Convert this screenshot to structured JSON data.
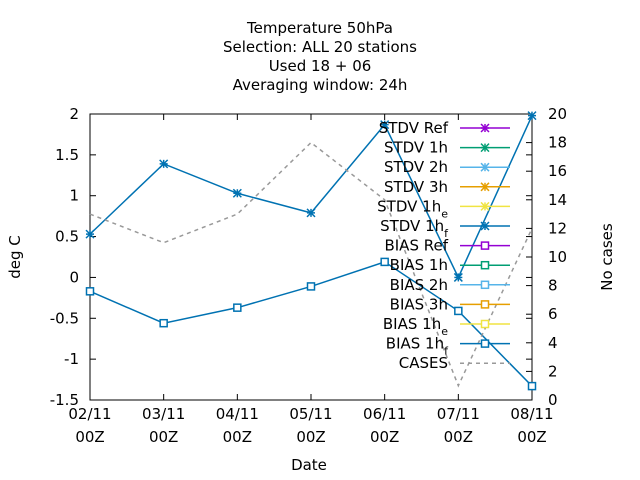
{
  "chart_data": {
    "type": "line",
    "title_lines": [
      "Temperature 50hPa",
      "Selection: ALL      20 stations",
      "Used  18 + 06",
      "Averaging window: 24h"
    ],
    "xlabel": "Date",
    "ylabel": "deg C",
    "y2label": "No cases",
    "x_ticks": [
      {
        "top": "02/11",
        "bottom": "00Z"
      },
      {
        "top": "03/11",
        "bottom": "00Z"
      },
      {
        "top": "04/11",
        "bottom": "00Z"
      },
      {
        "top": "05/11",
        "bottom": "00Z"
      },
      {
        "top": "06/11",
        "bottom": "00Z"
      },
      {
        "top": "07/11",
        "bottom": "00Z"
      },
      {
        "top": "08/11",
        "bottom": "00Z"
      }
    ],
    "ylim": [
      -1.5,
      2
    ],
    "yticks": [
      "2",
      "1.5",
      "1",
      "0.5",
      "0",
      "-0.5",
      "-1",
      "-1.5"
    ],
    "y2lim": [
      0,
      20
    ],
    "y2ticks": [
      "20",
      "18",
      "16",
      "14",
      "12",
      "10",
      "8",
      "6",
      "4",
      "2",
      "0"
    ],
    "grid": false,
    "legend_position": "top-right",
    "legend": [
      {
        "label": "STDV Ref",
        "sub": "",
        "color": "#9400d3",
        "marker": "x"
      },
      {
        "label": "STDV 1h",
        "sub": "",
        "color": "#009e73",
        "marker": "x"
      },
      {
        "label": "STDV 2h",
        "sub": "",
        "color": "#56b4e9",
        "marker": "x"
      },
      {
        "label": "STDV 3h",
        "sub": "",
        "color": "#e69f00",
        "marker": "x"
      },
      {
        "label": "STDV 1h",
        "sub": "e",
        "color": "#f0e442",
        "marker": "x"
      },
      {
        "label": "STDV 1h",
        "sub": "f",
        "color": "#0072b2",
        "marker": "x"
      },
      {
        "label": "BIAS Ref",
        "sub": "",
        "color": "#9400d3",
        "marker": "s"
      },
      {
        "label": "BIAS 1h",
        "sub": "",
        "color": "#009e73",
        "marker": "s"
      },
      {
        "label": "BIAS 2h",
        "sub": "",
        "color": "#56b4e9",
        "marker": "s"
      },
      {
        "label": "BIAS 3h",
        "sub": "",
        "color": "#e69f00",
        "marker": "s"
      },
      {
        "label": "BIAS 1h",
        "sub": "e",
        "color": "#f0e442",
        "marker": "s"
      },
      {
        "label": "BIAS 1h",
        "sub": "f",
        "color": "#0072b2",
        "marker": "s"
      },
      {
        "label": "CASES",
        "sub": "",
        "color": "#999999",
        "marker": "dash"
      }
    ],
    "series": [
      {
        "key": "stdv_1hf",
        "axis": "y",
        "color": "#0072b2",
        "marker": "x",
        "values": [
          0.53,
          1.39,
          1.03,
          0.79,
          1.87,
          0.0,
          1.98
        ]
      },
      {
        "key": "bias_1hf",
        "axis": "y",
        "color": "#0072b2",
        "marker": "s",
        "values": [
          -0.17,
          -0.56,
          -0.37,
          -0.11,
          0.19,
          -0.41,
          -1.33
        ]
      },
      {
        "key": "cases",
        "axis": "y2",
        "color": "#999999",
        "marker": "dash",
        "values": [
          13,
          11,
          13,
          18,
          14,
          1,
          12
        ]
      }
    ]
  }
}
